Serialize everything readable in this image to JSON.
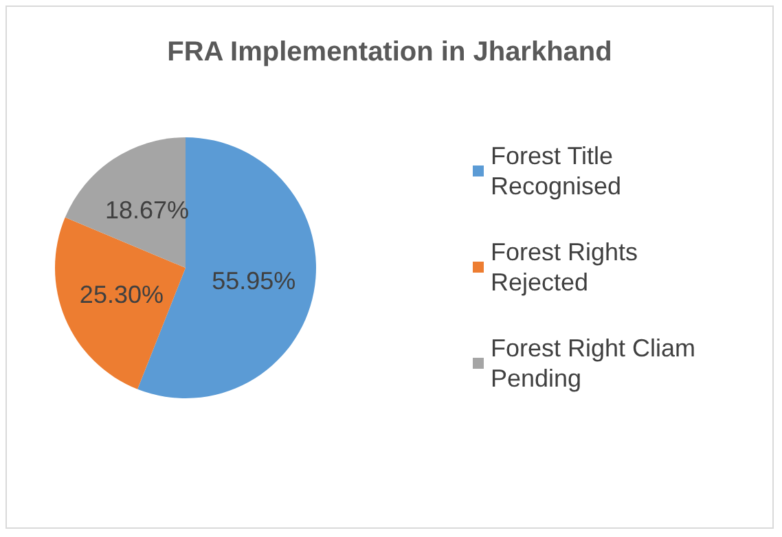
{
  "chart_data": {
    "type": "pie",
    "title": "FRA Implementation in Jharkhand",
    "categories": [
      "Forest Title Recognised",
      "Forest Rights Rejected",
      "Forest Right Cliam Pending"
    ],
    "values": [
      55.95,
      25.3,
      18.67
    ],
    "colors": [
      "#5b9bd5",
      "#ed7d31",
      "#a5a5a5"
    ],
    "value_labels": [
      "55.95%",
      "25.30%",
      "18.67%"
    ],
    "legend": "right"
  }
}
